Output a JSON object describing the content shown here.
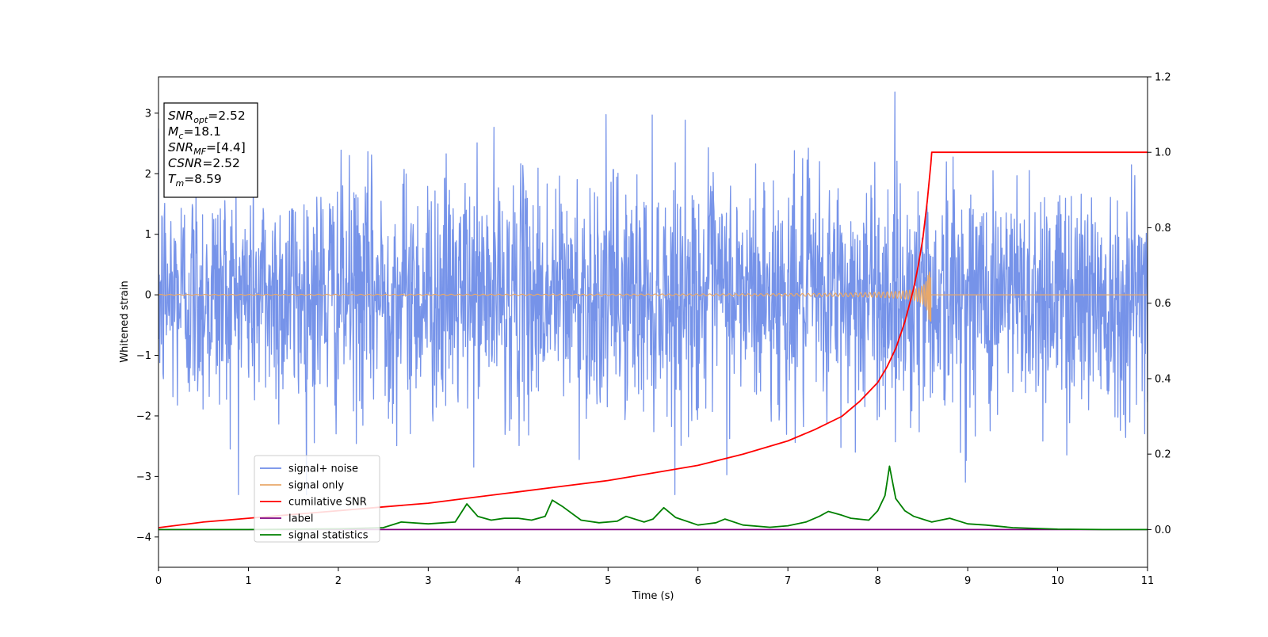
{
  "chart_data": {
    "type": "line",
    "xlabel": "Time (s)",
    "ylabel": "Whitened strain",
    "xlim": [
      0,
      11
    ],
    "ylim": [
      -4.5,
      3.6
    ],
    "y2lim": [
      -0.1,
      1.2
    ],
    "xticks": [
      0,
      1,
      2,
      3,
      4,
      5,
      6,
      7,
      8,
      9,
      10,
      11
    ],
    "xtick_labels": [
      "0",
      "1",
      "2",
      "3",
      "4",
      "5",
      "6",
      "7",
      "8",
      "9",
      "10",
      "11"
    ],
    "yticks": [
      -4,
      -3,
      -2,
      -1,
      0,
      1,
      2,
      3
    ],
    "ytick_labels": [
      "−4",
      "−3",
      "−2",
      "−1",
      "0",
      "1",
      "2",
      "3"
    ],
    "y2ticks": [
      0.0,
      0.2,
      0.4,
      0.6,
      0.8,
      1.0,
      1.2
    ],
    "y2tick_labels": [
      "0.0",
      "0.2",
      "0.4",
      "0.6",
      "0.8",
      "1.0",
      "1.2"
    ],
    "grid": false,
    "legend_position": "lower-left",
    "series": [
      {
        "name": "signal+ noise",
        "axis": "left",
        "color": "#6f8de8",
        "style": "noise",
        "t_range": [
          0,
          11
        ],
        "typical_range": [
          -1.8,
          1.8
        ],
        "max": 3.35,
        "min": -3.3
      },
      {
        "name": "signal only",
        "axis": "left",
        "color": "#e8a86a",
        "style": "chirp",
        "t_range": [
          0,
          8.59
        ],
        "peak_amplitude": 0.45,
        "peak_time": 8.59
      },
      {
        "name": "cumilative SNR",
        "axis": "right",
        "color": "#ff0000",
        "x": [
          0,
          0.5,
          1,
          1.5,
          2,
          2.5,
          3,
          3.5,
          4,
          4.5,
          5,
          5.5,
          6,
          6.5,
          7,
          7.3,
          7.6,
          7.8,
          8.0,
          8.1,
          8.2,
          8.3,
          8.4,
          8.45,
          8.5,
          8.55,
          8.59,
          8.6,
          11
        ],
        "y": [
          0.005,
          0.02,
          0.03,
          0.04,
          0.05,
          0.06,
          0.07,
          0.085,
          0.1,
          0.115,
          0.13,
          0.15,
          0.17,
          0.2,
          0.235,
          0.265,
          0.3,
          0.34,
          0.39,
          0.43,
          0.48,
          0.55,
          0.64,
          0.7,
          0.77,
          0.87,
          0.97,
          1.0,
          1.0
        ]
      },
      {
        "name": "label",
        "axis": "right",
        "color": "#800080",
        "x": [
          0,
          11
        ],
        "y": [
          0,
          0
        ]
      },
      {
        "name": "signal statistics",
        "axis": "right",
        "color": "#008000",
        "x": [
          0,
          1,
          2,
          2.5,
          2.7,
          3.0,
          3.3,
          3.43,
          3.55,
          3.7,
          3.85,
          4.0,
          4.15,
          4.3,
          4.38,
          4.5,
          4.7,
          4.9,
          5.1,
          5.2,
          5.4,
          5.5,
          5.62,
          5.75,
          6.0,
          6.2,
          6.3,
          6.5,
          6.8,
          7.0,
          7.2,
          7.35,
          7.45,
          7.6,
          7.7,
          7.9,
          8.0,
          8.08,
          8.13,
          8.2,
          8.3,
          8.4,
          8.6,
          8.8,
          9.0,
          9.2,
          9.5,
          10,
          10.5,
          11
        ],
        "y": [
          0,
          0,
          0.002,
          0.005,
          0.02,
          0.015,
          0.02,
          0.068,
          0.035,
          0.025,
          0.03,
          0.03,
          0.025,
          0.035,
          0.078,
          0.06,
          0.025,
          0.018,
          0.022,
          0.035,
          0.02,
          0.028,
          0.058,
          0.032,
          0.012,
          0.018,
          0.028,
          0.012,
          0.006,
          0.01,
          0.02,
          0.035,
          0.048,
          0.038,
          0.03,
          0.025,
          0.05,
          0.09,
          0.168,
          0.082,
          0.05,
          0.035,
          0.02,
          0.03,
          0.015,
          0.012,
          0.005,
          0.001,
          0,
          0
        ]
      }
    ],
    "annotation_lines": [
      {
        "main": "SNR",
        "sub": "opt",
        "rest": "=2.52"
      },
      {
        "main": "M",
        "sub": "c",
        "rest": "=18.1"
      },
      {
        "main": "SNR",
        "sub": "MF",
        "rest": "=[4.4]"
      },
      {
        "main": "CSNR",
        "sub": "",
        "rest": "=2.52"
      },
      {
        "main": "T",
        "sub": "m",
        "rest": "=8.59"
      }
    ]
  }
}
